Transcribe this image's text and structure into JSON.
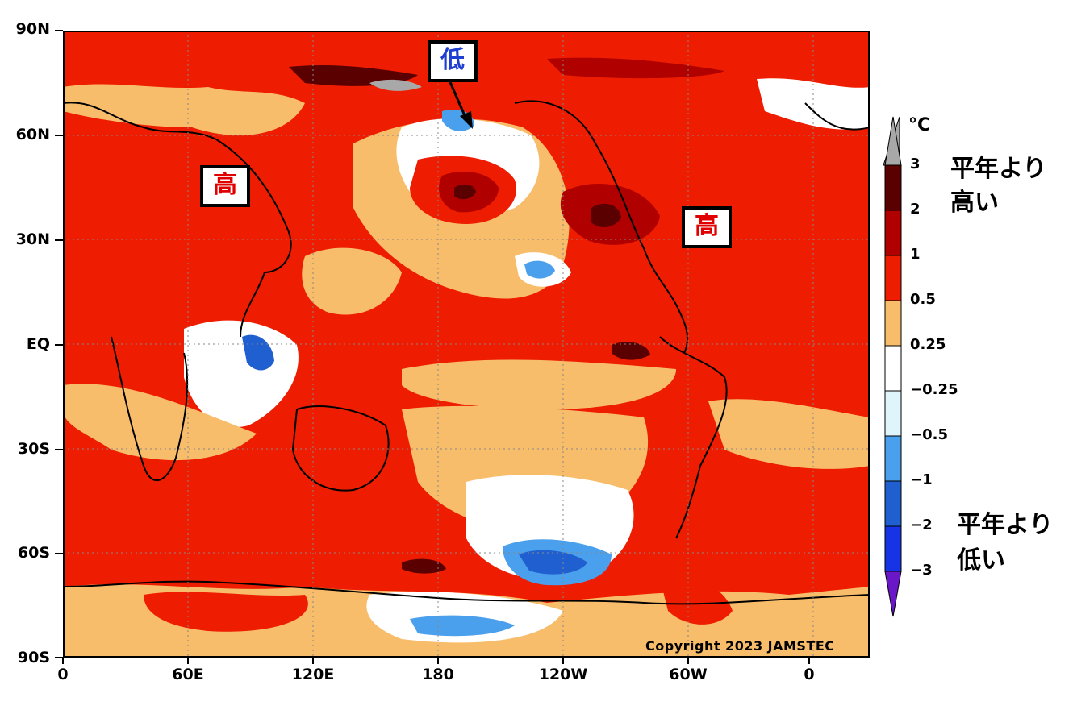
{
  "map": {
    "y_axis_labels": [
      "90N",
      "60N",
      "30N",
      "EQ",
      "30S",
      "60S",
      "90S"
    ],
    "x_axis_labels": [
      "0",
      "60E",
      "120E",
      "180",
      "120W",
      "60W",
      "0"
    ],
    "copyright": "Copyright 2023 JAMSTEC",
    "annotations": {
      "high_left": "高",
      "high_right": "高",
      "low": "低"
    },
    "annotation_colors": {
      "high": "#e00000",
      "low": "#1f3fd0"
    }
  },
  "legend": {
    "unit": "°C",
    "levels": [
      "3",
      "2",
      "1",
      "0.5",
      "0.25",
      "−0.25",
      "−0.5",
      "−1",
      "−2",
      "−3"
    ],
    "colors": [
      "#5a0000",
      "#b00000",
      "#ee1c00",
      "#f8bd6b",
      "#ffffff",
      "#dff5fb",
      "#4aa0ec",
      "#1f5fcf",
      "#1633e6",
      "#6a17c8"
    ],
    "over_color": "#a8a8a8",
    "higher_label_line1": "平年より",
    "higher_label_line2": "高い",
    "lower_label_line1": "平年より",
    "lower_label_line2": "低い"
  }
}
